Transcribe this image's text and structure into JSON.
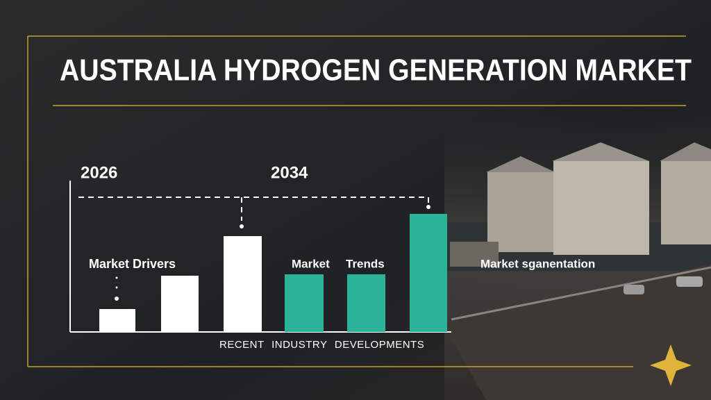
{
  "chart_data": {
    "type": "bar",
    "title": "AUSTRALIA HYDROGEN GENERATION MARKET",
    "annotations": [
      "2026",
      "2034",
      "Market Drivers",
      "Market",
      "Trends",
      "Market sganentation",
      "RECENT INDUSTRY DEVELOPMENTS"
    ],
    "categories": [
      null,
      null,
      null,
      null,
      null,
      null
    ],
    "values": [
      33,
      81,
      138,
      83,
      83,
      170
    ],
    "colors": [
      "#ffffff",
      "#ffffff",
      "#ffffff",
      "#2bb39a",
      "#2bb39a",
      "#2bb39a"
    ],
    "ylim": [
      0,
      200
    ]
  }
}
